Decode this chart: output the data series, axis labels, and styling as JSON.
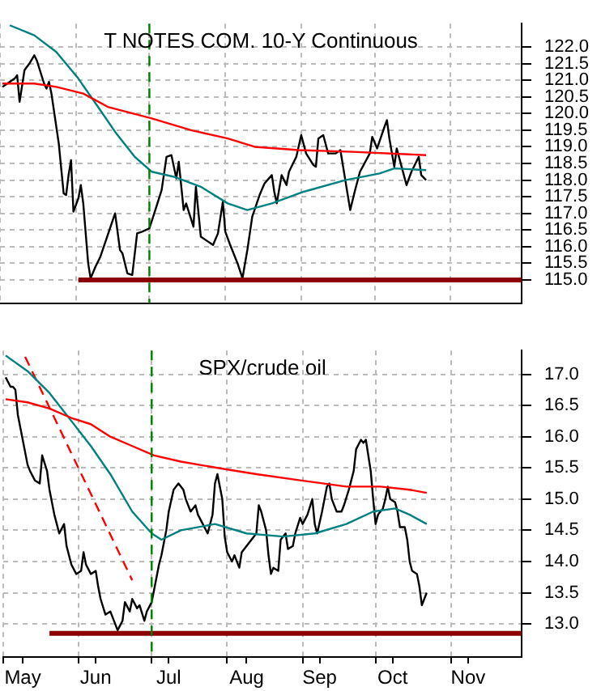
{
  "chart_data": [
    {
      "type": "line",
      "title": "T NOTES COM. 10-Y Continuous",
      "tick_labels": "y",
      "grid": true,
      "xlim": [
        "--05-01",
        "--11-30"
      ],
      "xticks": [
        {
          "value": "--05-01",
          "label": null
        },
        {
          "value": "--06-01",
          "label": null
        },
        {
          "value": "--07-01",
          "label": null
        },
        {
          "value": "--08-01",
          "label": null
        },
        {
          "value": "--09-01",
          "label": null
        },
        {
          "value": "--10-01",
          "label": null
        },
        {
          "value": "--11-01",
          "label": null
        }
      ],
      "ylim": [
        114.3,
        122.7
      ],
      "yticks": [
        {
          "value": 115,
          "label": "115.0"
        },
        115.5,
        {
          "value": 116,
          "label": "116.0"
        },
        116.5,
        {
          "value": 117,
          "label": "117.0"
        },
        117.5,
        {
          "value": 118,
          "label": "118.0"
        },
        118.5,
        {
          "value": 119,
          "label": "119.0"
        },
        119.5,
        {
          "value": 120,
          "label": "120.0"
        },
        120.5,
        {
          "value": 121,
          "label": "121.0"
        },
        121.5,
        {
          "value": 122,
          "label": "122.0"
        }
      ],
      "ref_lines": [
        {
          "axis": "x",
          "value": "--07-01",
          "color": "#008000",
          "line_style": "dashed"
        }
      ],
      "series": [
        {
          "color": "#ff0000",
          "x": [
            "--05-02",
            "--05-15",
            "--05-24",
            "--06-04",
            "--06-14",
            "--07-02",
            "--07-18",
            "--08-02",
            "--08-13",
            "--08-31",
            "--09-22",
            "--10-22"
          ],
          "values": [
            120.9,
            120.9,
            120.8,
            120.6,
            120.2,
            119.85,
            119.5,
            119.25,
            119.0,
            118.9,
            118.85,
            118.75
          ]
        },
        {
          "color": "#008080",
          "x": [
            "--05-05",
            "--05-15",
            "--05-24",
            "--06-02",
            "--06-10",
            "--06-17",
            "--06-25",
            "--07-02",
            "--07-11",
            "--07-22",
            "--08-02",
            "--08-10",
            "--08-20",
            "--09-02",
            "--09-19",
            "--10-03",
            "--10-09",
            "--10-22"
          ],
          "values": [
            122.65,
            122.35,
            121.85,
            121.05,
            120.2,
            119.45,
            118.7,
            118.25,
            118.1,
            117.8,
            117.3,
            117.1,
            117.3,
            117.65,
            118.0,
            118.2,
            118.35,
            118.3
          ]
        },
        {
          "color": "#8b0000",
          "x": [
            "--06-02",
            "--11-30"
          ],
          "values": [
            115.0,
            115.0
          ]
        },
        {
          "color": "#000000",
          "x": [
            "--05-02",
            "--05-04",
            "--05-07",
            "--05-08",
            "--05-09",
            "--05-11",
            "--05-13",
            "--05-15",
            "--05-16",
            "--05-19",
            "--05-20",
            "--05-21",
            "--05-22",
            "--05-25",
            "--05-27",
            "--05-28",
            "--05-29",
            "--05-30",
            "--05-31",
            "--06-02",
            "--06-03",
            "--06-04",
            "--06-06",
            "--06-07",
            "--06-09",
            "--06-11",
            "--06-14",
            "--06-17",
            "--06-19",
            "--06-20",
            "--06-22",
            "--06-24",
            "--06-26",
            "--06-28",
            "--07-01",
            "--07-03",
            "--07-06",
            "--07-08",
            "--07-10",
            "--07-12",
            "--07-13",
            "--07-15",
            "--07-16",
            "--07-19",
            "--07-20",
            "--07-22",
            "--07-24",
            "--07-27",
            "--07-29",
            "--07-31",
            "--08-01",
            "--08-03",
            "--08-06",
            "--08-08",
            "--08-10",
            "--08-12",
            "--08-15",
            "--08-17",
            "--08-20",
            "--08-21",
            "--08-22",
            "--08-24",
            "--08-26",
            "--08-27",
            "--08-30",
            "--09-01",
            "--09-03",
            "--09-06",
            "--09-07",
            "--09-08",
            "--09-10",
            "--09-12",
            "--09-15",
            "--09-17",
            "--09-19",
            "--09-21",
            "--09-23",
            "--09-25",
            "--09-29",
            "--09-30",
            "--10-02",
            "--10-05",
            "--10-06",
            "--10-07",
            "--10-09",
            "--10-10",
            "--10-12",
            "--10-14",
            "--10-16",
            "--10-19",
            "--10-20",
            "--10-22"
          ],
          "values": [
            120.8,
            120.9,
            121.05,
            121.15,
            120.35,
            121.3,
            121.5,
            121.75,
            121.6,
            120.9,
            120.75,
            120.95,
            120.6,
            119.1,
            117.6,
            117.55,
            118.15,
            118.6,
            117.05,
            117.45,
            117.85,
            117.3,
            115.5,
            115.05,
            115.4,
            115.7,
            116.35,
            117.0,
            115.9,
            115.8,
            115.2,
            115.15,
            116.4,
            116.45,
            116.55,
            117.0,
            117.7,
            118.7,
            118.75,
            118.05,
            118.55,
            117.1,
            117.3,
            116.6,
            117.8,
            116.3,
            116.2,
            116.05,
            116.4,
            117.35,
            116.45,
            116.05,
            115.5,
            115.05,
            115.9,
            116.9,
            117.55,
            117.9,
            118.15,
            117.65,
            117.3,
            118.15,
            117.85,
            118.25,
            118.7,
            119.35,
            118.8,
            118.45,
            118.4,
            119.25,
            119.35,
            118.8,
            118.8,
            118.9,
            118.0,
            117.1,
            117.7,
            118.25,
            118.8,
            119.3,
            118.95,
            119.6,
            119.8,
            119.25,
            118.4,
            118.95,
            118.4,
            117.85,
            118.25,
            118.7,
            118.15,
            118.0
          ]
        }
      ]
    },
    {
      "type": "line",
      "title": "SPX/crude oil",
      "grid": true,
      "xlim": [
        "--05-01",
        "--11-30"
      ],
      "xticks": [
        {
          "value": "--05-01",
          "label": null
        },
        {
          "value": "--05-09",
          "label": "May"
        },
        {
          "value": "--06-01",
          "label": null
        },
        {
          "value": "--06-08",
          "label": "Jun"
        },
        {
          "value": "--07-01",
          "label": null
        },
        {
          "value": "--07-08",
          "label": "Jul"
        },
        {
          "value": "--08-01",
          "label": null
        },
        {
          "value": "--08-09",
          "label": "Aug"
        },
        {
          "value": "--09-01",
          "label": null
        },
        {
          "value": "--09-08",
          "label": "Sep"
        },
        {
          "value": "--10-01",
          "label": null
        },
        {
          "value": "--10-08",
          "label": "Oct"
        },
        {
          "value": "--11-01",
          "label": null
        },
        {
          "value": "--11-08",
          "label": "Nov"
        }
      ],
      "ylim": [
        12.47,
        17.38
      ],
      "yticks": [
        {
          "value": 13,
          "label": "13.0"
        },
        13.5,
        {
          "value": 14,
          "label": "14.0"
        },
        14.5,
        {
          "value": 15,
          "label": "15.0"
        },
        15.5,
        {
          "value": 16,
          "label": "16.0"
        },
        16.5,
        {
          "value": 17,
          "label": "17.0"
        }
      ],
      "ref_lines": [
        {
          "axis": "x",
          "value": "--07-01",
          "color": "#008000",
          "line_style": "dashed"
        }
      ],
      "series": [
        {
          "color": "#ff0000",
          "x": [
            "--05-02",
            "--05-11",
            "--05-20",
            "--05-29",
            "--06-06",
            "--06-14",
            "--06-23",
            "--07-02",
            "--07-13",
            "--07-28",
            "--08-13",
            "--08-31",
            "--09-19",
            "--10-03",
            "--10-15",
            "--10-22"
          ],
          "values": [
            16.6,
            16.55,
            16.45,
            16.3,
            16.2,
            16.0,
            15.85,
            15.7,
            15.6,
            15.5,
            15.4,
            15.3,
            15.2,
            15.2,
            15.15,
            15.1
          ]
        },
        {
          "color": "#008080",
          "x": [
            "--05-02",
            "--05-11",
            "--05-20",
            "--05-29",
            "--06-06",
            "--06-14",
            "--06-23",
            "--07-01",
            "--07-05",
            "--07-13",
            "--07-27",
            "--08-09",
            "--08-24",
            "--09-06",
            "--09-19",
            "--09-30",
            "--10-09",
            "--10-15",
            "--10-22"
          ],
          "values": [
            17.3,
            17.05,
            16.7,
            16.25,
            15.85,
            15.4,
            14.8,
            14.45,
            14.35,
            14.5,
            14.6,
            14.45,
            14.4,
            14.45,
            14.6,
            14.8,
            14.85,
            14.75,
            14.6
          ]
        },
        {
          "color": "#ff0000",
          "line_style": "dashed",
          "x": [
            "--05-10",
            "--06-23"
          ],
          "values": [
            17.28,
            13.7
          ]
        },
        {
          "color": "#8b0000",
          "x": [
            "--05-20",
            "--11-30"
          ],
          "values": [
            12.85,
            12.85
          ]
        },
        {
          "color": "#000000",
          "x": [
            "--05-02",
            "--05-04",
            "--05-05",
            "--05-06",
            "--05-07",
            "--05-09",
            "--05-11",
            "--05-12",
            "--05-14",
            "--05-16",
            "--05-17",
            "--05-19",
            "--05-20",
            "--05-22",
            "--05-23",
            "--05-24",
            "--05-26",
            "--05-27",
            "--05-29",
            "--05-31",
            "--06-02",
            "--06-03",
            "--06-04",
            "--06-06",
            "--06-08",
            "--06-09",
            "--06-10",
            "--06-12",
            "--06-14",
            "--06-15",
            "--06-17",
            "--06-19",
            "--06-20",
            "--06-22",
            "--06-23",
            "--06-25",
            "--06-26",
            "--06-28",
            "--06-29",
            "--07-01",
            "--07-02",
            "--07-04",
            "--07-05",
            "--07-07",
            "--07-08",
            "--07-10",
            "--07-12",
            "--07-14",
            "--07-15",
            "--07-17",
            "--07-19",
            "--07-20",
            "--07-22",
            "--07-24",
            "--07-26",
            "--07-27",
            "--07-28",
            "--07-30",
            "--07-31",
            "--08-01",
            "--08-03",
            "--08-04",
            "--08-06",
            "--08-07",
            "--08-09",
            "--08-11",
            "--08-13",
            "--08-14",
            "--08-15",
            "--08-17",
            "--08-18",
            "--08-19",
            "--08-20",
            "--08-22",
            "--08-23",
            "--08-25",
            "--08-26",
            "--08-28",
            "--08-29",
            "--08-31",
            "--09-01",
            "--09-03",
            "--09-05",
            "--09-06",
            "--09-07",
            "--09-09",
            "--09-11",
            "--09-12",
            "--09-13",
            "--09-15",
            "--09-17",
            "--09-18",
            "--09-20",
            "--09-22",
            "--09-23",
            "--09-25",
            "--09-26",
            "--09-27",
            "--09-29",
            "--09-30",
            "--10-01",
            "--10-02",
            "--10-04",
            "--10-05",
            "--10-06",
            "--10-07",
            "--10-09",
            "--10-10",
            "--10-11",
            "--10-13",
            "--10-14",
            "--10-15",
            "--10-16",
            "--10-18",
            "--10-19",
            "--10-20",
            "--10-21",
            "--10-22"
          ],
          "values": [
            16.95,
            16.8,
            16.8,
            16.75,
            16.35,
            15.95,
            15.55,
            15.45,
            15.3,
            15.25,
            15.7,
            15.45,
            15.15,
            14.75,
            14.6,
            14.45,
            14.6,
            14.25,
            13.95,
            13.8,
            13.85,
            14.15,
            13.95,
            13.8,
            13.85,
            13.6,
            13.4,
            13.15,
            13.2,
            13.1,
            12.9,
            13.05,
            13.35,
            13.2,
            13.4,
            13.25,
            13.3,
            13.05,
            13.2,
            13.35,
            13.55,
            13.95,
            14.1,
            14.5,
            14.8,
            15.15,
            15.25,
            15.15,
            15.0,
            14.8,
            14.9,
            14.75,
            14.6,
            14.45,
            14.75,
            15.25,
            15.4,
            15.0,
            14.4,
            14.15,
            14.0,
            14.1,
            13.9,
            14.15,
            14.25,
            14.35,
            14.45,
            14.9,
            14.8,
            14.5,
            14.1,
            13.8,
            13.9,
            13.85,
            14.35,
            14.45,
            14.2,
            14.25,
            14.45,
            14.7,
            14.6,
            14.75,
            15.0,
            14.6,
            14.45,
            14.8,
            15.2,
            15.25,
            15.0,
            14.8,
            14.8,
            14.9,
            15.15,
            15.45,
            15.8,
            15.95,
            15.9,
            15.95,
            15.45,
            15.0,
            14.6,
            14.75,
            14.85,
            15.0,
            15.2,
            15.0,
            14.95,
            14.8,
            14.55,
            14.55,
            14.35,
            14.0,
            13.85,
            13.8,
            13.6,
            13.3,
            13.4,
            13.5
          ]
        }
      ]
    }
  ]
}
